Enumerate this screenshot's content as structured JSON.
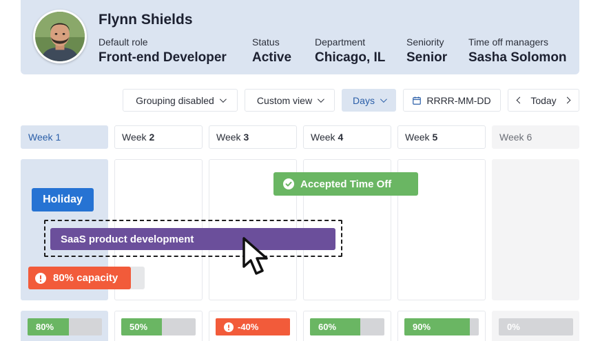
{
  "profile": {
    "name": "Flynn Shields",
    "fields": [
      {
        "label": "Default role",
        "value": "Front-end Developer"
      },
      {
        "label": "Status",
        "value": "Active"
      },
      {
        "label": "Department",
        "value": "Chicago, IL"
      },
      {
        "label": "Seniority",
        "value": "Senior"
      },
      {
        "label": "Time off managers",
        "value": "Sasha Solomon"
      }
    ]
  },
  "toolbar": {
    "grouping": "Grouping disabled",
    "view": "Custom view",
    "scale": "Days",
    "date_placeholder": "RRRR-MM-DD",
    "today": "Today"
  },
  "weeks": [
    {
      "prefix": "Week",
      "num": "1"
    },
    {
      "prefix": "Week",
      "num": "2"
    },
    {
      "prefix": "Week",
      "num": "3"
    },
    {
      "prefix": "Week",
      "num": "4"
    },
    {
      "prefix": "Week",
      "num": "5"
    },
    {
      "prefix": "Week",
      "num": "6"
    }
  ],
  "events": {
    "holiday": "Holiday",
    "accepted_time_off": "Accepted Time Off",
    "project": "SaaS product development",
    "capacity": "80% capacity"
  },
  "utilization": [
    {
      "label": "80%",
      "fill": 0.56
    },
    {
      "label": "50%",
      "fill": 0.55
    },
    {
      "label": "-40%",
      "fill": 1.0,
      "negative": true
    },
    {
      "label": "60%",
      "fill": 0.68
    },
    {
      "label": "90%",
      "fill": 0.88
    },
    {
      "label": "0%",
      "fill": 0
    }
  ],
  "colors": {
    "holiday": "#2673d3",
    "accepted": "#6ab663",
    "project": "#6b4f9b",
    "warning": "#f25b3a",
    "highlight": "#dbe4f1"
  },
  "icons": {
    "dropdown": "chevron-down-icon",
    "calendar": "calendar-icon",
    "check": "check-circle-icon",
    "warning": "exclamation-circle-icon",
    "cursor": "mouse-pointer-icon"
  }
}
